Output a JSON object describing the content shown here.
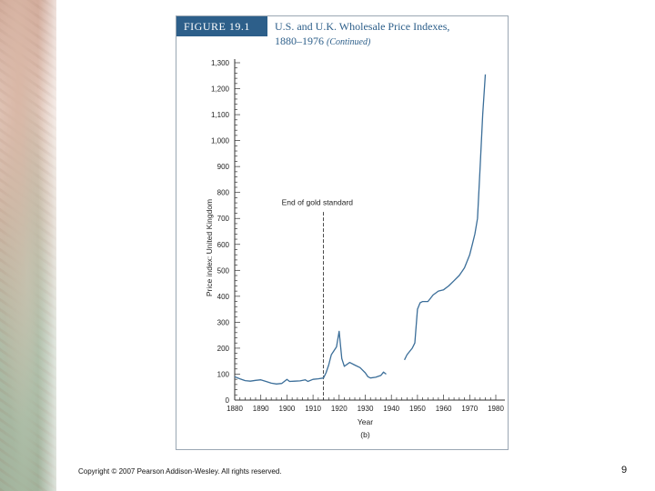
{
  "slide": {
    "copyright": "Copyright © 2007 Pearson Addison-Wesley. All rights reserved.",
    "page_number": "9"
  },
  "figure": {
    "tag": "FIGURE 19.1",
    "title_line1": "U.S. and U.K. Wholesale Price Indexes,",
    "title_line2": "1880–1976",
    "title_continued": "(Continued)"
  },
  "colors": {
    "accent": "#2d5f8a",
    "line": "#3b6e99",
    "axis": "#333333"
  },
  "chart_data": {
    "type": "line",
    "title": "U.S. and U.K. Wholesale Price Indexes, 1880–1976",
    "xlabel": "Year",
    "ylabel": "Price index: United Kingdom",
    "panel_label": "(b)",
    "xlim": [
      1880,
      1980
    ],
    "ylim": [
      0,
      1300
    ],
    "x_ticks": [
      1880,
      1890,
      1900,
      1910,
      1920,
      1930,
      1940,
      1950,
      1960,
      1970,
      1980
    ],
    "x_tick_labels": [
      "1880",
      "1890",
      "1900",
      "1910",
      "1920",
      "1930",
      "1940",
      "1950",
      "1960",
      "1970",
      "1980"
    ],
    "y_ticks": [
      0,
      100,
      200,
      300,
      400,
      500,
      600,
      700,
      800,
      900,
      1000,
      1100,
      1200,
      1300
    ],
    "y_tick_labels": [
      "0",
      "100",
      "200",
      "300",
      "400",
      "500",
      "600",
      "700",
      "800",
      "900",
      "1,000",
      "1,100",
      "1,200",
      "1,300"
    ],
    "annotation": {
      "text": "End of gold standard",
      "x": 1914,
      "label_y": 765,
      "line_top_y": 725
    },
    "series": [
      {
        "name": "United Kingdom",
        "segments": [
          {
            "x": [
              1880,
              1882,
              1884,
              1886,
              1888,
              1890,
              1892,
              1894,
              1896,
              1898,
              1900,
              1901,
              1903,
              1905,
              1907,
              1908,
              1910,
              1912,
              1914,
              1915,
              1916,
              1917,
              1918,
              1919,
              1920,
              1921,
              1922,
              1924,
              1926,
              1928,
              1930,
              1931,
              1932,
              1934,
              1936,
              1937,
              1938
            ],
            "y": [
              90,
              82,
              75,
              73,
              76,
              78,
              72,
              65,
              62,
              64,
              80,
              72,
              73,
              74,
              78,
              72,
              80,
              82,
              85,
              105,
              135,
              175,
              190,
              205,
              265,
              160,
              130,
              145,
              135,
              125,
              105,
              90,
              85,
              88,
              95,
              108,
              100
            ]
          },
          {
            "x": [
              1945,
              1946,
              1948,
              1949,
              1950,
              1951,
              1952,
              1954,
              1956,
              1958,
              1960,
              1962,
              1964,
              1966,
              1968,
              1970,
              1971,
              1972,
              1973,
              1974,
              1975,
              1976
            ],
            "y": [
              155,
              175,
              200,
              220,
              350,
              375,
              380,
              380,
              405,
              420,
              425,
              440,
              460,
              480,
              510,
              560,
              600,
              640,
              700,
              900,
              1100,
              1255
            ]
          }
        ]
      }
    ]
  }
}
